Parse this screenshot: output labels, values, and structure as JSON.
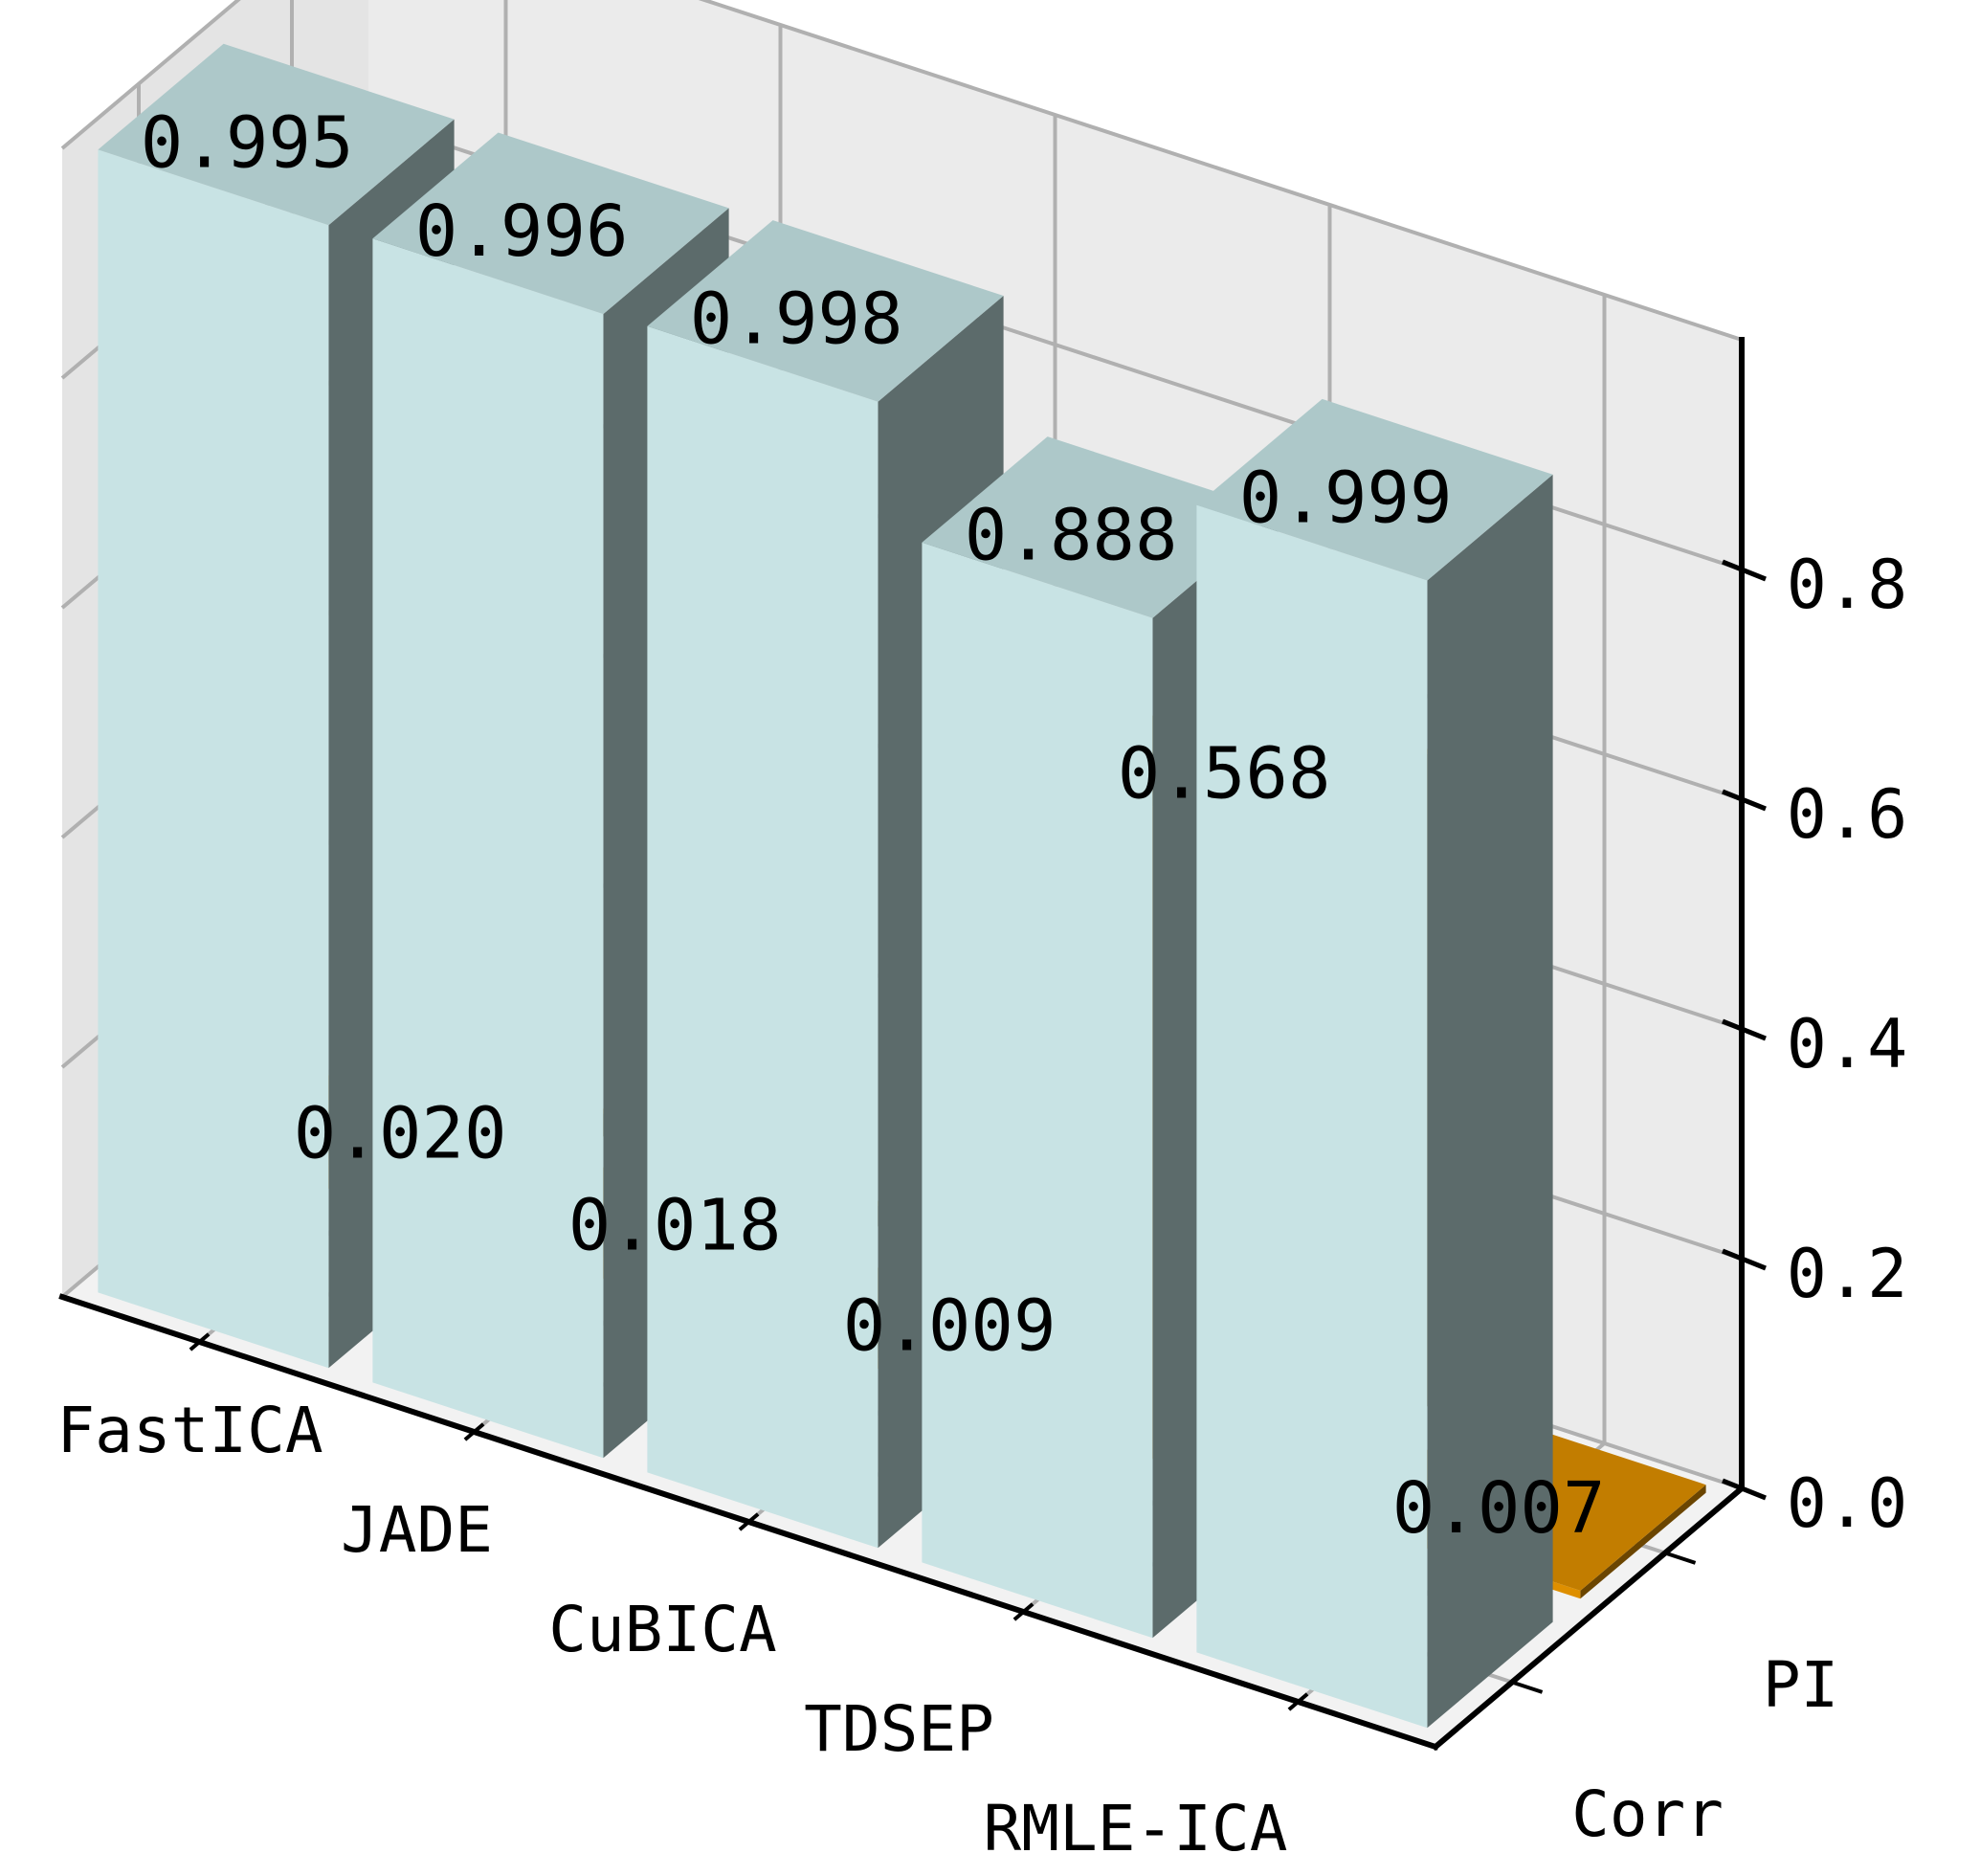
{
  "chart_data": {
    "type": "bar3d",
    "title": "",
    "categories": [
      "FastICA",
      "JADE",
      "CuBICA",
      "TDSEP",
      "RMLE-ICA"
    ],
    "series": [
      {
        "name": "Corr",
        "values": [
          0.995,
          0.996,
          0.998,
          0.888,
          0.999
        ],
        "labels": [
          "0.995",
          "0.996",
          "0.998",
          "0.888",
          "0.999"
        ]
      },
      {
        "name": "PI",
        "values": [
          0.02,
          0.018,
          0.009,
          0.568,
          0.007
        ],
        "labels": [
          "0.020",
          "0.018",
          "0.009",
          "0.568",
          "0.007"
        ]
      }
    ],
    "z_ticks": [
      0.0,
      0.2,
      0.4,
      0.6,
      0.8
    ],
    "z_tick_labels": [
      "0.0",
      "0.2",
      "0.4",
      "0.6",
      "0.8"
    ],
    "zlim": [
      0,
      1.0
    ],
    "xlabel": "",
    "ylabel": "",
    "zlabel": "",
    "grid": true
  },
  "colors": {
    "corr_front": "#c8e3e4",
    "corr_top": "#adc8c9",
    "corr_side": "#5c6b6b",
    "pi_front": "#de8f00",
    "pi_top": "#c27d00",
    "pi_side": "#6b4500",
    "pane_back": "#ebebeb",
    "pane_side": "#e4e4e4",
    "pane_floor": "#f2f2f2",
    "grid": "#b0b0b0",
    "axis": "#000000"
  }
}
